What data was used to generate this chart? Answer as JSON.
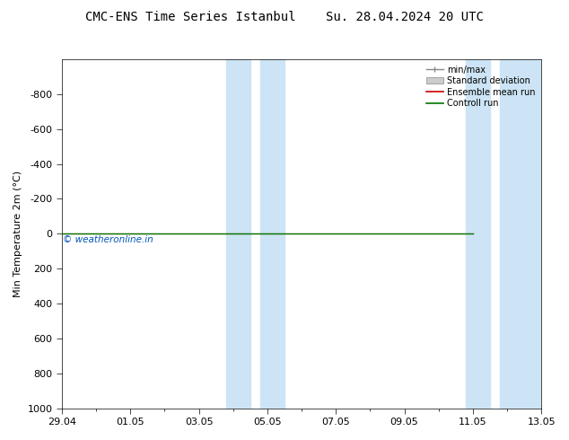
{
  "title": "CMC-ENS Time Series Istanbul    Su. 28.04.2024 20 UTC",
  "ylabel": "Min Temperature 2m (°C)",
  "ylim_top": -1000,
  "ylim_bottom": 1000,
  "yticks": [
    -800,
    -600,
    -400,
    -200,
    0,
    200,
    400,
    600,
    800,
    1000
  ],
  "xtick_labels": [
    "29.04",
    "01.05",
    "03.05",
    "05.05",
    "07.05",
    "09.05",
    "11.05",
    "13.05"
  ],
  "xtick_positions": [
    0,
    2,
    4,
    6,
    8,
    10,
    12,
    14
  ],
  "xlim": [
    0,
    14
  ],
  "shaded_regions": [
    {
      "x_start": 4.8,
      "x_end": 5.5
    },
    {
      "x_start": 5.8,
      "x_end": 6.5
    },
    {
      "x_start": 11.8,
      "x_end": 12.5
    },
    {
      "x_start": 12.8,
      "x_end": 14.1
    }
  ],
  "shade_color": "#cce4f5",
  "green_line_color": "#007700",
  "green_line_xend": 12.0,
  "red_line_color": "#cc0000",
  "copyright_text": "© weatheronline.in",
  "copyright_color": "#0055bb",
  "legend_items": [
    "min/max",
    "Standard deviation",
    "Ensemble mean run",
    "Controll run"
  ],
  "background_color": "#ffffff",
  "title_fontsize": 10,
  "axis_fontsize": 8,
  "tick_fontsize": 8
}
